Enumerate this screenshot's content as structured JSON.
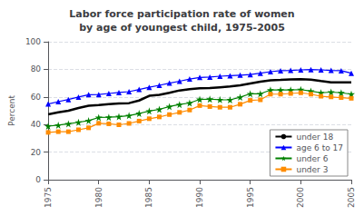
{
  "chart_data": {
    "type": "line",
    "title": "Labor force participation rate of women\nby age of youngest child, 1975-2005",
    "ylabel": "Percent",
    "x": [
      1975,
      1976,
      1977,
      1978,
      1979,
      1980,
      1981,
      1982,
      1983,
      1984,
      1985,
      1986,
      1987,
      1988,
      1989,
      1990,
      1991,
      1992,
      1993,
      1994,
      1995,
      1996,
      1997,
      1998,
      1999,
      2000,
      2001,
      2002,
      2003,
      2004,
      2005
    ],
    "series": [
      {
        "name": "under 18",
        "color": "#000000",
        "marker": "none",
        "values": [
          47.4,
          48.9,
          50.0,
          52.0,
          53.6,
          54.1,
          54.8,
          55.3,
          55.5,
          57.4,
          60.8,
          61.5,
          63.0,
          64.7,
          65.6,
          66.3,
          66.4,
          67.0,
          67.6,
          68.4,
          69.7,
          71.0,
          72.0,
          72.3,
          72.7,
          72.9,
          72.6,
          71.5,
          70.6,
          70.5,
          70.5
        ]
      },
      {
        "name": "age 6 to 17",
        "color": "#0000ff",
        "marker": "triangle",
        "values": [
          54.9,
          56.6,
          58.1,
          59.9,
          61.6,
          61.7,
          62.5,
          63.2,
          63.8,
          65.4,
          67.0,
          68.4,
          70.0,
          71.4,
          73.0,
          74.1,
          74.4,
          75.0,
          75.4,
          75.8,
          76.2,
          77.2,
          78.3,
          79.0,
          79.2,
          79.6,
          79.8,
          79.6,
          79.2,
          79.0,
          77.2
        ]
      },
      {
        "name": "under 6",
        "color": "#008000",
        "marker": "star",
        "values": [
          38.8,
          39.5,
          40.5,
          41.6,
          42.8,
          45.1,
          45.3,
          45.7,
          46.5,
          48.0,
          49.8,
          51.0,
          53.0,
          54.5,
          55.6,
          58.2,
          58.4,
          58.0,
          57.9,
          59.8,
          62.3,
          62.3,
          65.0,
          65.0,
          65.0,
          65.3,
          64.2,
          63.0,
          63.5,
          63.0,
          62.0
        ]
      },
      {
        "name": "under 3",
        "color": "#ff8c00",
        "marker": "square",
        "values": [
          34.3,
          34.8,
          34.8,
          36.2,
          37.6,
          40.9,
          40.5,
          39.8,
          40.8,
          42.5,
          44.2,
          45.5,
          47.2,
          48.8,
          50.5,
          53.7,
          53.0,
          52.5,
          52.5,
          54.7,
          57.5,
          57.9,
          62.0,
          62.0,
          62.5,
          63.0,
          62.0,
          60.5,
          60.0,
          59.5,
          59.0
        ]
      }
    ],
    "xlim": [
      1975,
      2005
    ],
    "xticks": [
      1975,
      1980,
      1985,
      1990,
      1995,
      2000,
      2005
    ],
    "ylim": [
      0,
      100
    ],
    "yticks": [
      0,
      20,
      40,
      60,
      80,
      100
    ],
    "grid": true,
    "legend": "lower right"
  }
}
